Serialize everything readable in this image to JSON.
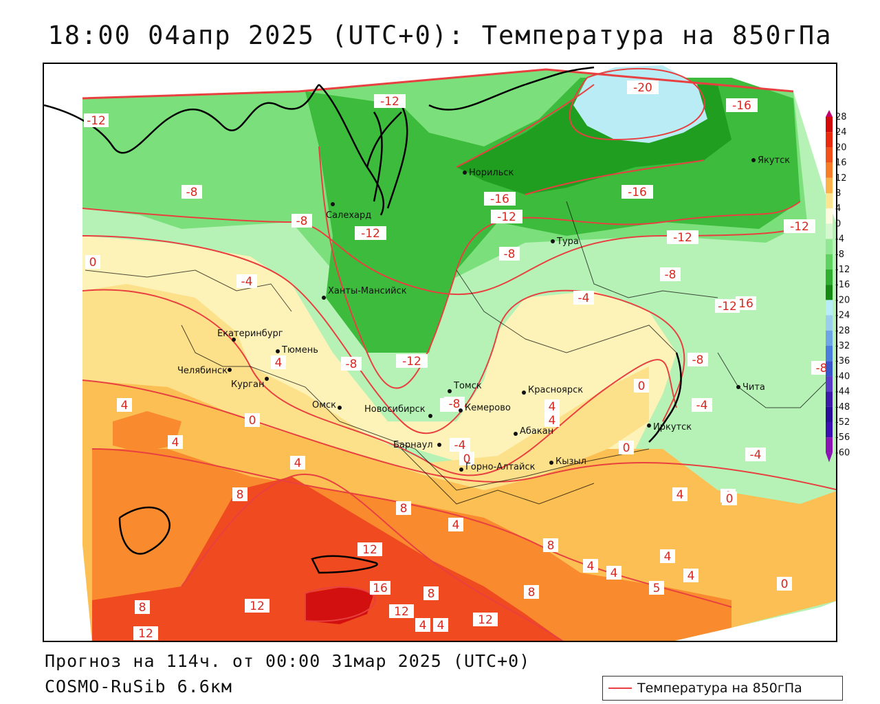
{
  "title": "18:00 04апр 2025 (UTC+0): Температура на 850гПа",
  "footer": {
    "forecast": "Прогноз на 114ч. от 00:00 31мар 2025 (UTC+0)",
    "model": "COSMO-RuSib 6.6км"
  },
  "legend": {
    "label": "Температура на 850гПа",
    "line_color": "#e84040"
  },
  "colors": {
    "very_cold": "#b9ecf5",
    "cold_dark": "#1f9e1f",
    "cold_mid": "#3dbb3d",
    "cold_light": "#7be07b",
    "cool": "#b6f2b6",
    "mild": "#fdf3b8",
    "warm_light": "#fde08a",
    "warm": "#fbbf53",
    "hot": "#f98a2e",
    "very_hot": "#f04a20",
    "extreme": "#d31010",
    "contour": "#e84040"
  },
  "scale": {
    "levels": [
      "28",
      "24",
      "20",
      "16",
      "12",
      "8",
      "4",
      "0",
      "-4",
      "-8",
      "-12",
      "-16",
      "-20",
      "-24",
      "-28",
      "-32",
      "-36",
      "-40",
      "-44",
      "-48",
      "-52",
      "-56",
      "-60"
    ],
    "colors": [
      "#c4006e",
      "#d40a0a",
      "#ea2a0f",
      "#f2521a",
      "#f77e26",
      "#fbb248",
      "#fde591",
      "#fffbe0",
      "#d6f7d0",
      "#93e893",
      "#5fd25f",
      "#2fae2f",
      "#148a14",
      "#b8ecf6",
      "#9ccfee",
      "#6ea5e6",
      "#4b7ddc",
      "#3a55cc",
      "#5a3cc8",
      "#3d1aa9",
      "#2a0e99",
      "#3b0fb0",
      "#8a14b4"
    ]
  },
  "cities": [
    {
      "name": "Норильск"
    },
    {
      "name": "Якутск"
    },
    {
      "name": "Салехард"
    },
    {
      "name": "Тура"
    },
    {
      "name": "Ханты-Мансийск"
    },
    {
      "name": "Екатеринбург"
    },
    {
      "name": "Тюмень"
    },
    {
      "name": "Челябинск"
    },
    {
      "name": "Курган"
    },
    {
      "name": "Омск"
    },
    {
      "name": "Новосибирск"
    },
    {
      "name": "Томск"
    },
    {
      "name": "Кемерово"
    },
    {
      "name": "Красноярск"
    },
    {
      "name": "Абакан"
    },
    {
      "name": "Барнаул"
    },
    {
      "name": "Горно-Алтайск"
    },
    {
      "name": "Кызыл"
    },
    {
      "name": "Иркутск"
    },
    {
      "name": "Чита"
    }
  ],
  "contour_labels": [
    "-12",
    "-12",
    "-20",
    "-16",
    "-8",
    "-16",
    "-16",
    "-12",
    "-12",
    "-12",
    "-12",
    "-8",
    "-8",
    "0",
    "-4",
    "-4",
    "-8",
    "-8",
    "-12",
    "16",
    "-8",
    "-8",
    "-12",
    "-8",
    "0",
    "4",
    "4",
    "0",
    "4",
    "4",
    "4",
    "-8",
    "0",
    "-4",
    "0",
    "-4",
    "-4",
    "4",
    "4",
    "8",
    "8",
    "12",
    "4",
    "0",
    "8",
    "4",
    "4",
    "4",
    "4",
    "0",
    "16",
    "8",
    "8",
    "5",
    "12",
    "12",
    "12",
    "8",
    "4",
    "12",
    "0",
    "4"
  ]
}
